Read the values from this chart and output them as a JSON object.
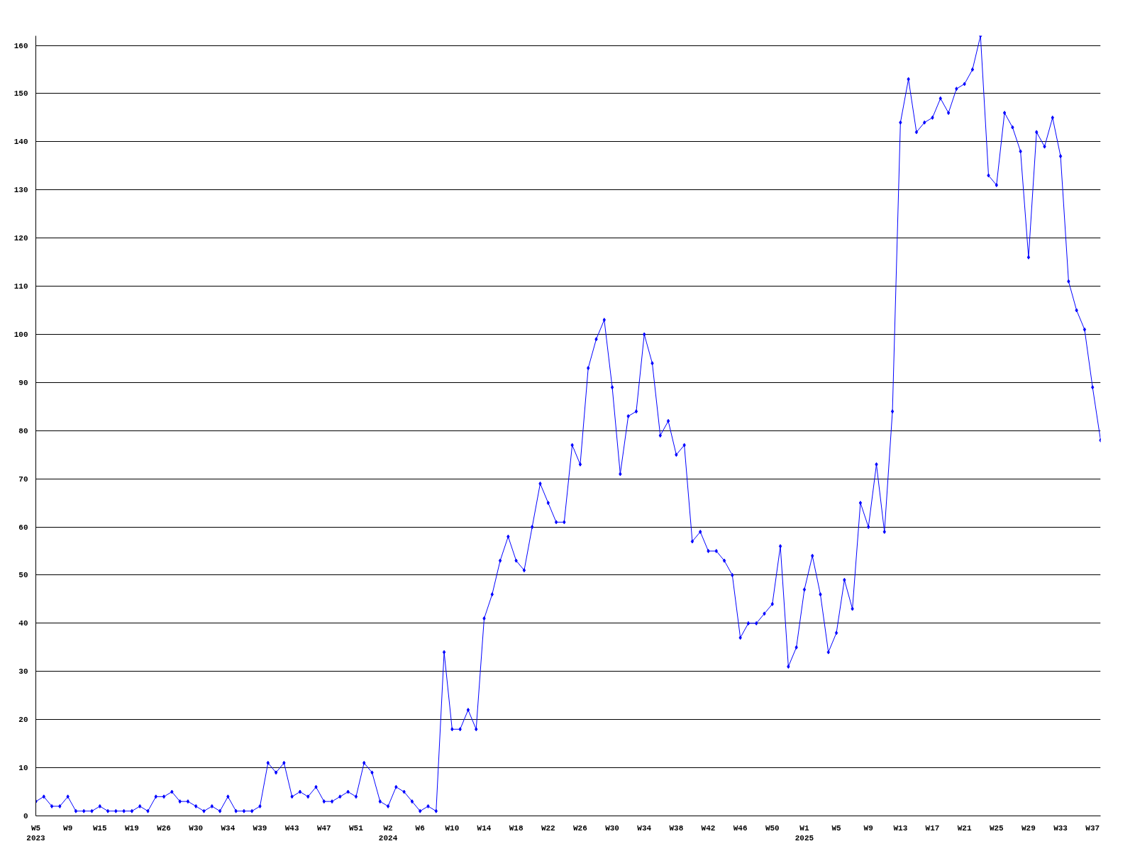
{
  "chart_data": {
    "type": "line",
    "color": "#0000ff",
    "marker": "diamond",
    "line_style": "solid",
    "grid": "y",
    "ylim": [
      0,
      162
    ],
    "yticks": [
      0,
      10,
      20,
      30,
      40,
      50,
      60,
      70,
      80,
      90,
      100,
      110,
      120,
      130,
      140,
      150,
      160
    ],
    "categories": [
      "W5\n2023",
      null,
      null,
      null,
      "W9",
      null,
      null,
      null,
      "W15",
      null,
      null,
      null,
      "W19",
      null,
      null,
      null,
      "W26",
      null,
      null,
      null,
      "W30",
      null,
      null,
      null,
      "W34",
      null,
      null,
      null,
      "W39",
      null,
      null,
      null,
      "W43",
      null,
      null,
      null,
      "W47",
      null,
      null,
      null,
      "W51",
      null,
      null,
      null,
      "W2\n2024",
      null,
      null,
      null,
      "W6",
      null,
      null,
      null,
      "W10",
      null,
      null,
      null,
      "W14",
      null,
      null,
      null,
      "W18",
      null,
      null,
      null,
      "W22",
      null,
      null,
      null,
      "W26",
      null,
      null,
      null,
      "W30",
      null,
      null,
      null,
      "W34",
      null,
      null,
      null,
      "W38",
      null,
      null,
      null,
      "W42",
      null,
      null,
      null,
      "W46",
      null,
      null,
      null,
      "W50",
      null,
      null,
      null,
      "W1\n2025",
      null,
      null,
      null,
      "W5",
      null,
      null,
      null,
      "W9",
      null,
      null,
      null,
      "W13",
      null,
      null,
      null,
      "W17",
      null,
      null,
      null,
      "W21",
      null,
      null,
      null,
      "W25",
      null,
      null,
      null,
      "W29",
      null,
      null,
      null,
      "W33",
      null,
      null,
      null,
      "W37",
      null
    ],
    "values": [
      3,
      4,
      2,
      2,
      4,
      1,
      1,
      1,
      2,
      1,
      1,
      1,
      1,
      2,
      1,
      4,
      4,
      5,
      3,
      3,
      2,
      1,
      2,
      1,
      4,
      1,
      1,
      1,
      2,
      11,
      9,
      11,
      4,
      5,
      4,
      6,
      3,
      3,
      4,
      5,
      4,
      11,
      9,
      3,
      2,
      6,
      5,
      3,
      1,
      2,
      1,
      34,
      18,
      18,
      22,
      18,
      41,
      46,
      53,
      58,
      53,
      51,
      60,
      69,
      65,
      61,
      61,
      77,
      73,
      93,
      99,
      103,
      89,
      71,
      83,
      84,
      100,
      94,
      79,
      82,
      75,
      77,
      57,
      59,
      55,
      55,
      53,
      50,
      37,
      40,
      40,
      42,
      44,
      56,
      31,
      35,
      47,
      54,
      46,
      34,
      38,
      49,
      43,
      65,
      60,
      73,
      59,
      84,
      144,
      153,
      142,
      144,
      145,
      149,
      146,
      151,
      152,
      155,
      162,
      133,
      131,
      146,
      143,
      138,
      116,
      142,
      139,
      145,
      137,
      111,
      105,
      101,
      89,
      78
    ]
  }
}
